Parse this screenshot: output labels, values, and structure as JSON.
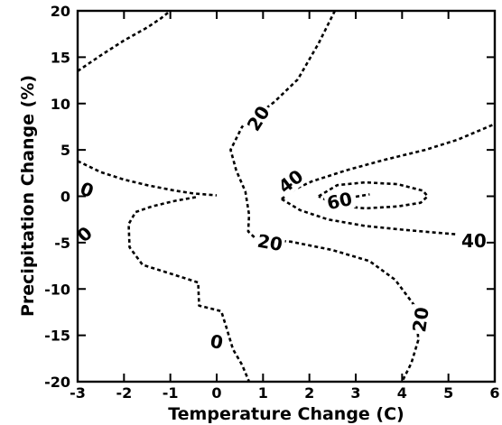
{
  "chart_data": {
    "type": "contour",
    "xlabel": "Temperature Change (C)",
    "ylabel": "Precipitation Change (%)",
    "xlim": [
      -3,
      6
    ],
    "ylim": [
      -20,
      20
    ],
    "x_ticks": [
      -3,
      -2,
      -1,
      0,
      1,
      2,
      3,
      4,
      5,
      6
    ],
    "y_ticks": [
      -20,
      -15,
      -10,
      -5,
      0,
      5,
      10,
      15,
      20
    ],
    "x_tick_labels": [
      "-3",
      "-2",
      "-1",
      "0",
      "1",
      "2",
      "3",
      "4",
      "5",
      "6"
    ],
    "y_tick_labels": [
      "-20",
      "-15",
      "-10",
      "-5",
      "0",
      "5",
      "10",
      "15",
      "20"
    ],
    "grid": false,
    "line_style": "dashed",
    "contours": [
      {
        "level": 20,
        "label": "20",
        "segments": [
          [
            [
              -3,
              13.5
            ],
            [
              -2.5,
              15.2
            ],
            [
              -2,
              16.8
            ],
            [
              -1.5,
              18.2
            ],
            [
              -1.2,
              19.2
            ],
            [
              -1.0,
              20
            ]
          ]
        ]
      },
      {
        "level": 20,
        "label": "20",
        "segments": [
          [
            [
              2.55,
              20
            ],
            [
              2.2,
              16.5
            ],
            [
              1.75,
              12.6
            ],
            [
              1.25,
              10.2
            ],
            [
              0.55,
              7.5
            ],
            [
              0.3,
              5
            ],
            [
              0.42,
              2.8
            ],
            [
              0.62,
              0.5
            ],
            [
              0.7,
              -2
            ],
            [
              0.68,
              -3.8
            ],
            [
              0.85,
              -4.6
            ],
            [
              1.6,
              -4.9
            ],
            [
              2.5,
              -5.8
            ],
            [
              3.3,
              -7
            ],
            [
              3.85,
              -9
            ],
            [
              4.3,
              -12
            ],
            [
              4.35,
              -15.5
            ],
            [
              4.2,
              -18
            ],
            [
              4.0,
              -20
            ]
          ]
        ]
      },
      {
        "level": 0,
        "label": "0",
        "segments": [
          [
            [
              -3,
              3.8
            ],
            [
              -2.5,
              2.6
            ],
            [
              -2.0,
              1.8
            ],
            [
              -1.5,
              1.2
            ],
            [
              -0.9,
              0.6
            ],
            [
              -0.5,
              0.3
            ],
            [
              0,
              0.1
            ]
          ],
          [
            [
              -0.45,
              -0.1
            ],
            [
              -0.9,
              -0.5
            ],
            [
              -1.4,
              -1.1
            ],
            [
              -1.75,
              -1.7
            ],
            [
              -1.9,
              -3
            ],
            [
              -1.88,
              -5.5
            ],
            [
              -1.6,
              -7.4
            ],
            [
              -0.9,
              -8.5
            ],
            [
              -0.4,
              -9.3
            ],
            [
              -0.38,
              -11.8
            ],
            [
              0.1,
              -12.4
            ],
            [
              0.2,
              -14
            ],
            [
              0.35,
              -16.5
            ],
            [
              0.55,
              -18.2
            ],
            [
              0.7,
              -20
            ]
          ]
        ]
      },
      {
        "level": 40,
        "label": "40",
        "segments": [
          [
            [
              1.4,
              -0.3
            ],
            [
              1.7,
              0.8
            ],
            [
              2.05,
              1.6
            ],
            [
              2.8,
              2.8
            ],
            [
              3.6,
              3.9
            ],
            [
              4.5,
              5
            ],
            [
              5.2,
              6.1
            ],
            [
              6,
              7.8
            ]
          ],
          [
            [
              1.4,
              -0.3
            ],
            [
              1.8,
              -1.5
            ],
            [
              2.4,
              -2.5
            ],
            [
              3.2,
              -3.2
            ],
            [
              4.0,
              -3.6
            ],
            [
              4.8,
              -3.95
            ],
            [
              5.15,
              -4.1
            ]
          ]
        ]
      },
      {
        "level": 60,
        "label": "60",
        "segments": [
          [
            [
              3.0,
              -0.05
            ],
            [
              3.3,
              0.2
            ]
          ],
          [
            [
              2.2,
              0
            ],
            [
              2.6,
              1.2
            ],
            [
              3.2,
              1.5
            ],
            [
              3.9,
              1.3
            ],
            [
              4.45,
              0.6
            ],
            [
              4.55,
              0
            ],
            [
              4.4,
              -0.7
            ],
            [
              3.9,
              -1.1
            ],
            [
              3.2,
              -1.3
            ],
            [
              2.6,
              -1.0
            ],
            [
              2.2,
              0
            ]
          ]
        ]
      }
    ],
    "contour_labels": [
      {
        "text": "20",
        "x": 0.9,
        "y": 8.4,
        "angle": -58
      },
      {
        "text": "20",
        "x": 1.15,
        "y": -5.0,
        "angle": 10
      },
      {
        "text": "20",
        "x": 4.4,
        "y": -13.3,
        "angle": -82
      },
      {
        "text": "0",
        "x": -2.8,
        "y": 0.7,
        "angle": 20
      },
      {
        "text": "0",
        "x": -2.85,
        "y": -4.1,
        "angle": -42
      },
      {
        "text": "0",
        "x": 0.0,
        "y": -15.7,
        "angle": 10
      },
      {
        "text": "40",
        "x": 1.6,
        "y": 1.6,
        "angle": -38
      },
      {
        "text": "40",
        "x": 5.55,
        "y": -4.8,
        "angle": 0
      },
      {
        "text": "60",
        "x": 2.65,
        "y": -0.5,
        "angle": -12
      }
    ]
  }
}
